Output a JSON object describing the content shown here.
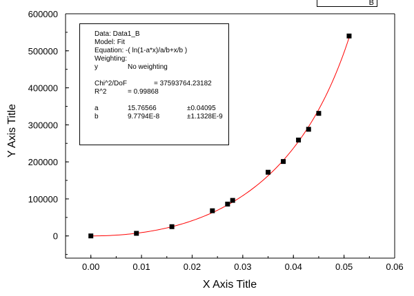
{
  "chart_data": {
    "type": "scatter",
    "xlabel": "X Axis Title",
    "ylabel": "Y Axis Title",
    "xlim": [
      -0.005,
      0.06
    ],
    "ylim": [
      -60000,
      600000
    ],
    "x_ticks": [
      "0.00",
      "0.01",
      "0.02",
      "0.03",
      "0.04",
      "0.05",
      "0.06"
    ],
    "y_ticks": [
      "0",
      "100000",
      "200000",
      "300000",
      "400000",
      "500000",
      "600000"
    ],
    "series": [
      {
        "type": "scatter",
        "marker": "square",
        "color": "#000000",
        "x": [
          0.0,
          0.009,
          0.016,
          0.024,
          0.027,
          0.028,
          0.035,
          0.038,
          0.041,
          0.043,
          0.045,
          0.051
        ],
        "y": [
          0,
          7000,
          25000,
          68000,
          86000,
          96000,
          172000,
          201000,
          259000,
          288000,
          331000,
          540000
        ]
      },
      {
        "type": "line",
        "color": "#ff0000",
        "model": "-( ln(1-a*x)/a/b+x/b )",
        "params": {
          "a": 15.76566,
          "b": 9.7794e-08
        },
        "x_range": [
          0.0,
          0.051
        ]
      }
    ],
    "grid": false,
    "legend": {
      "position": "top-right",
      "text": "B"
    }
  },
  "fit_box": {
    "data_line": "Data: Data1_B",
    "model_line": "Model: Fit",
    "equation_line": "Equation: -(  ln(1-a*x)/a/b+x/b )",
    "weighting_line": "Weighting:",
    "weighting_y": "y",
    "weighting_value": "No weighting",
    "chi_label": "Chi^2/DoF",
    "chi_value": "= 37593764.23182",
    "r2_label": "R^2",
    "r2_value": "=  0.99868",
    "a_label": "a",
    "a_value": "15.76566",
    "a_error": "±0.04095",
    "b_label": "b",
    "b_value": "9.7794E-8",
    "b_error": "±1.1328E-9"
  }
}
